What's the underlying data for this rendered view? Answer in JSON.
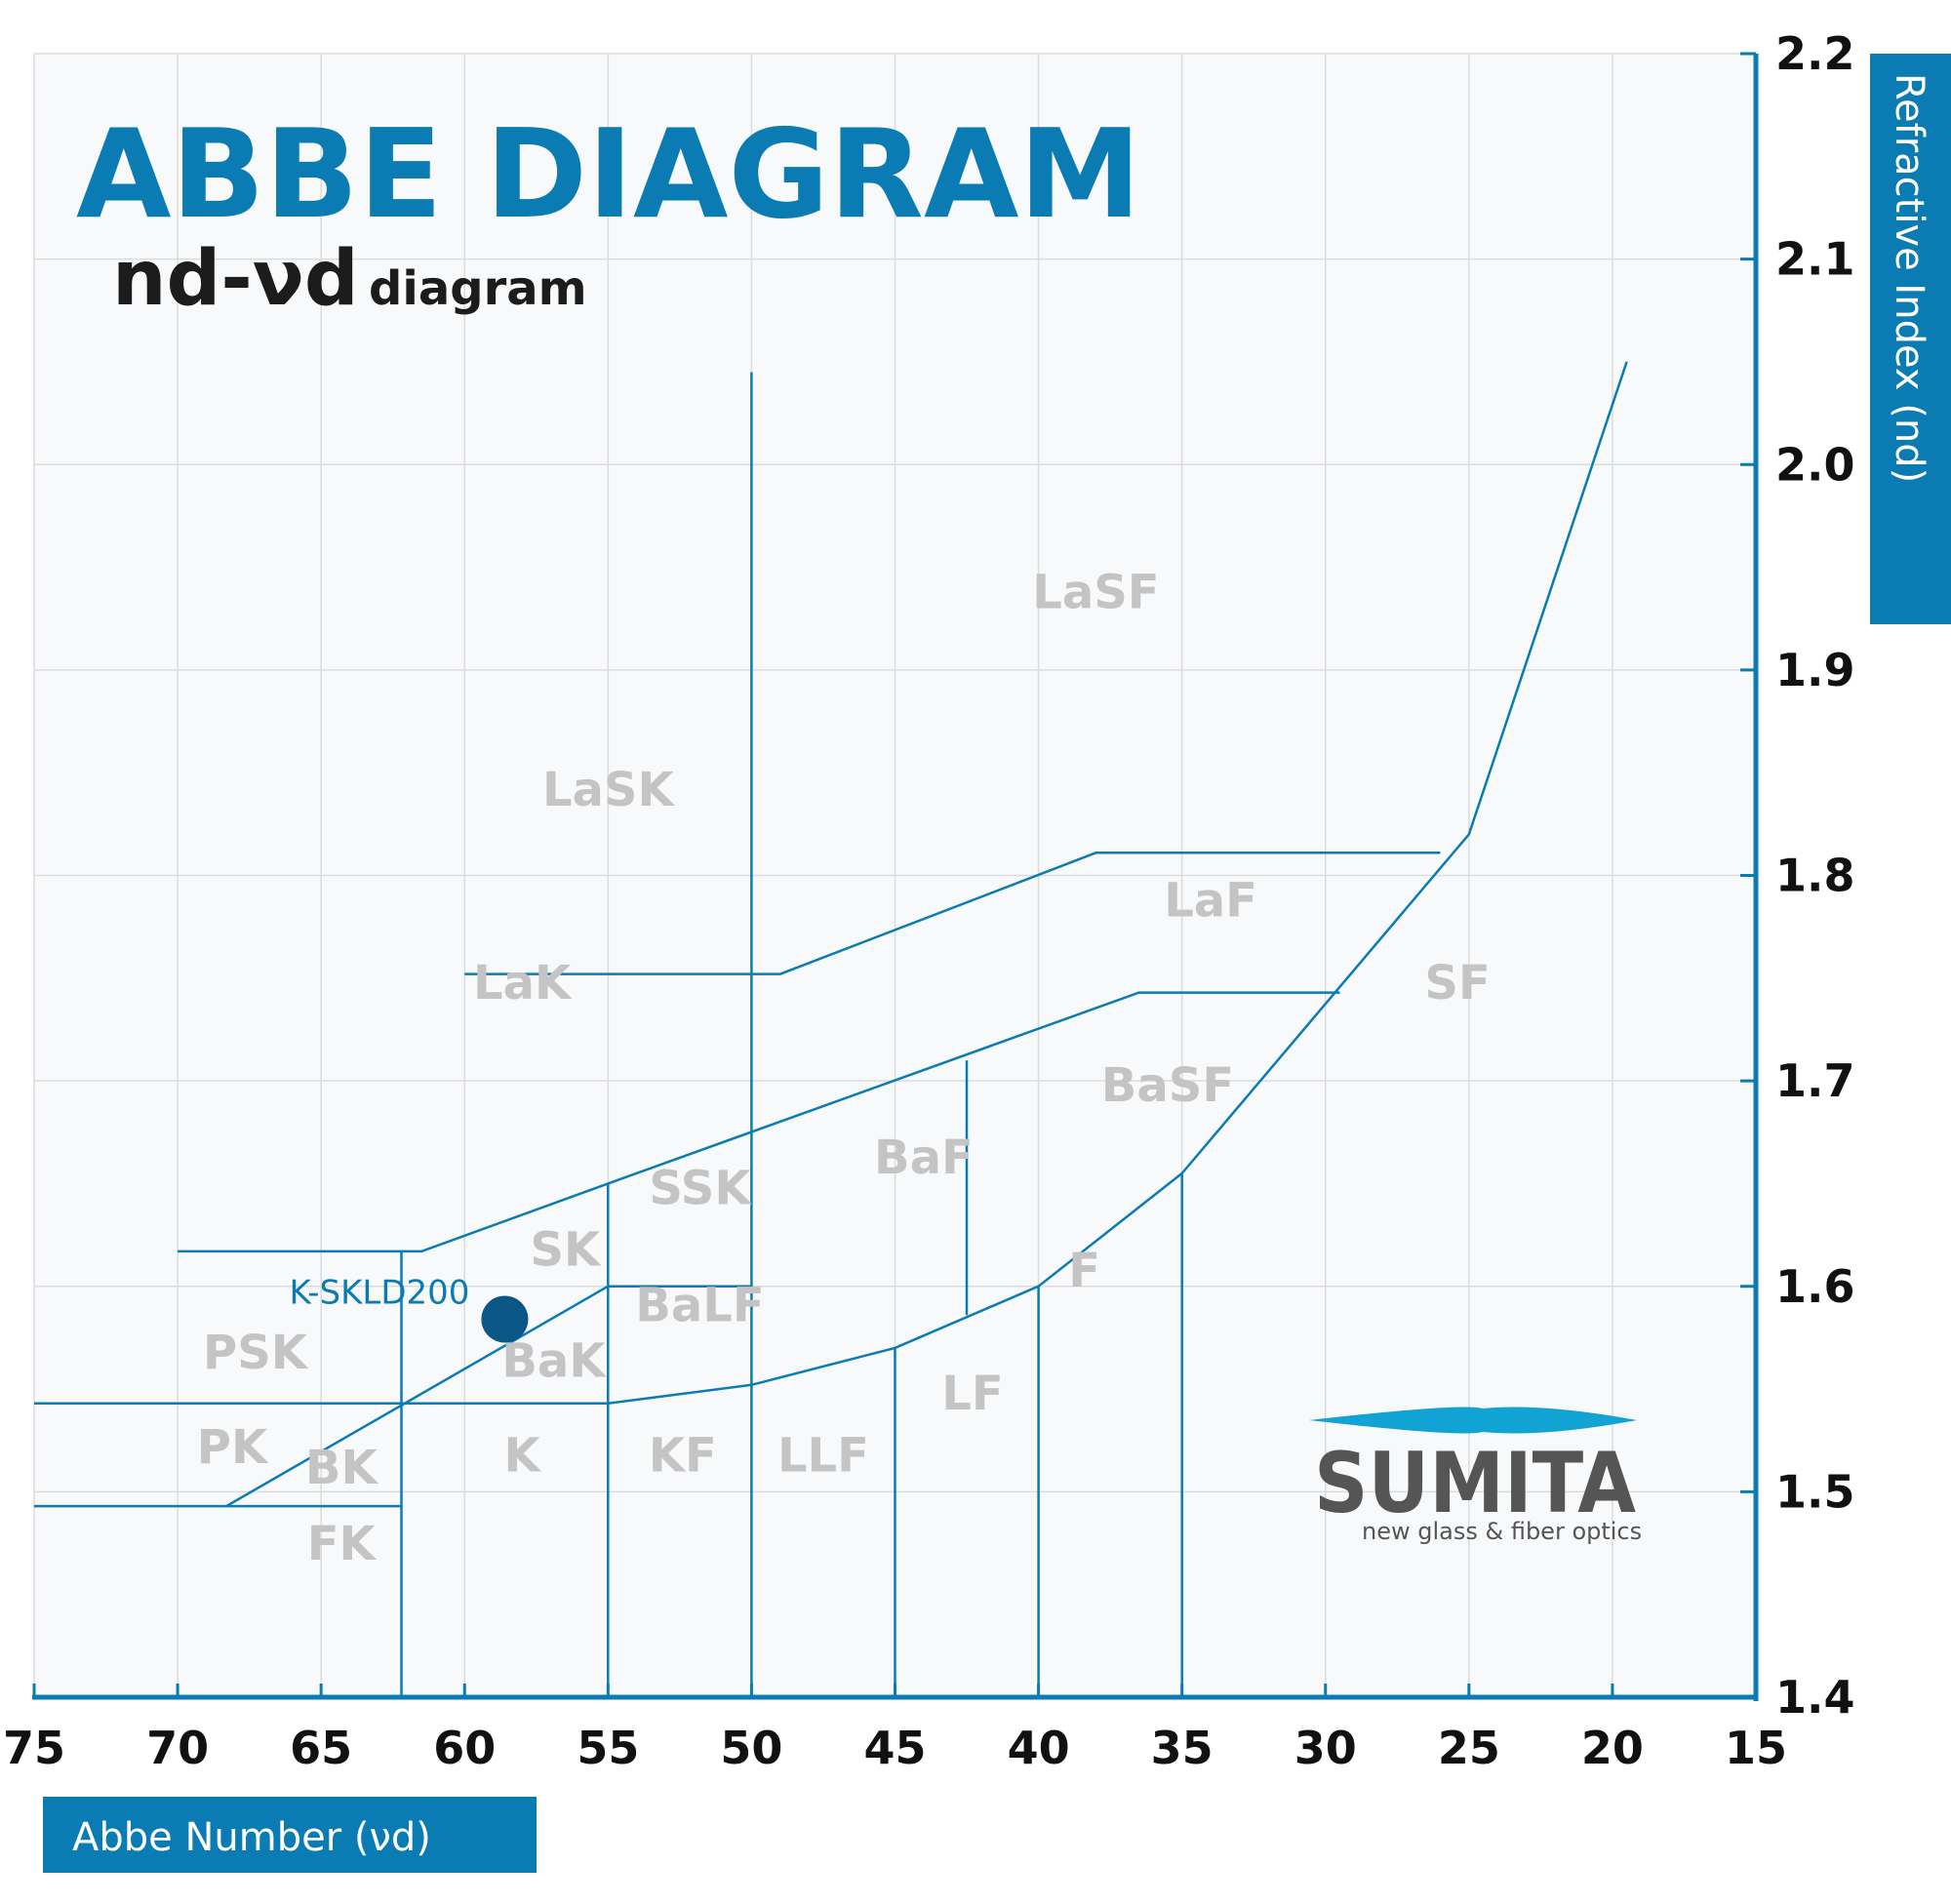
{
  "chart_data": {
    "type": "scatter",
    "title": "ABBE DIAGRAM",
    "subtitle_main": "nd-νd",
    "subtitle_small": "diagram",
    "xlabel": "Abbe Number (νd)",
    "ylabel": "Refractive Index (nd)",
    "x_axis_reversed": true,
    "xlim": [
      75,
      15
    ],
    "ylim": [
      1.4,
      2.2
    ],
    "x_ticks": [
      "75",
      "70",
      "65",
      "60",
      "55",
      "50",
      "45",
      "40",
      "35",
      "30",
      "25",
      "20",
      "15"
    ],
    "y_ticks": [
      "1.4",
      "1.5",
      "1.6",
      "1.7",
      "1.8",
      "1.9",
      "2.0",
      "2.1",
      "2.2"
    ],
    "grid": true,
    "points": [
      {
        "label": "K-SKLD200",
        "x": 58.6,
        "y": 1.584
      }
    ],
    "regions": [
      {
        "label": "LaSF",
        "x": 38,
        "y": 1.93
      },
      {
        "label": "LaSK",
        "x": 55,
        "y": 1.834
      },
      {
        "label": "LaF",
        "x": 34,
        "y": 1.78
      },
      {
        "label": "LaK",
        "x": 58,
        "y": 1.74
      },
      {
        "label": "SF",
        "x": 25.4,
        "y": 1.74
      },
      {
        "label": "BaSF",
        "x": 35.5,
        "y": 1.69
      },
      {
        "label": "BaF",
        "x": 44,
        "y": 1.655
      },
      {
        "label": "SSK",
        "x": 51.8,
        "y": 1.64
      },
      {
        "label": "SK",
        "x": 56.5,
        "y": 1.61
      },
      {
        "label": "F",
        "x": 38.4,
        "y": 1.6
      },
      {
        "label": "BaLF",
        "x": 51.8,
        "y": 1.583
      },
      {
        "label": "PSK",
        "x": 67.3,
        "y": 1.56
      },
      {
        "label": "BaK",
        "x": 56.9,
        "y": 1.556
      },
      {
        "label": "LF",
        "x": 42.3,
        "y": 1.54
      },
      {
        "label": "PK",
        "x": 68.1,
        "y": 1.514
      },
      {
        "label": "K",
        "x": 58,
        "y": 1.51
      },
      {
        "label": "KF",
        "x": 52.4,
        "y": 1.51
      },
      {
        "label": "LLF",
        "x": 47.5,
        "y": 1.51
      },
      {
        "label": "BK",
        "x": 64.3,
        "y": 1.504
      },
      {
        "label": "FK",
        "x": 64.3,
        "y": 1.467
      }
    ],
    "boundaries": [
      [
        [
          19.5,
          2.05
        ],
        [
          25,
          1.82
        ],
        [
          35,
          1.655
        ],
        [
          40,
          1.6
        ],
        [
          45,
          1.57
        ],
        [
          50,
          1.552
        ],
        [
          55,
          1.543
        ],
        [
          75,
          1.543
        ]
      ],
      [
        [
          50,
          2.045
        ],
        [
          50,
          1.4
        ]
      ],
      [
        [
          60,
          1.752
        ],
        [
          49,
          1.752
        ],
        [
          38,
          1.811
        ],
        [
          26,
          1.811
        ]
      ],
      [
        [
          70,
          1.617
        ],
        [
          61.5,
          1.617
        ],
        [
          55,
          1.65
        ],
        [
          36.5,
          1.743
        ],
        [
          29.5,
          1.743
        ]
      ],
      [
        [
          55,
          1.65
        ],
        [
          55,
          1.4
        ]
      ],
      [
        [
          55,
          1.6
        ],
        [
          50,
          1.6
        ]
      ],
      [
        [
          42.5,
          1.71
        ],
        [
          42.5,
          1.586
        ]
      ],
      [
        [
          45,
          1.57
        ],
        [
          45,
          1.4
        ]
      ],
      [
        [
          40,
          1.6
        ],
        [
          40,
          1.4
        ]
      ],
      [
        [
          35,
          1.655
        ],
        [
          35,
          1.4
        ]
      ],
      [
        [
          62.2,
          1.617
        ],
        [
          62.2,
          1.4
        ]
      ],
      [
        [
          75,
          1.493
        ],
        [
          62.2,
          1.493
        ]
      ],
      [
        [
          68.3,
          1.493
        ],
        [
          55,
          1.6
        ]
      ]
    ]
  },
  "logo": {
    "name": "SUMITA",
    "tagline": "new glass & fiber optics"
  },
  "colors": {
    "accent": "#0a7bb3",
    "region_label": "#c4c4c4",
    "point": "#0a5687",
    "plot_bg": "#f7f9fb",
    "grid": "#dcdcdc"
  }
}
